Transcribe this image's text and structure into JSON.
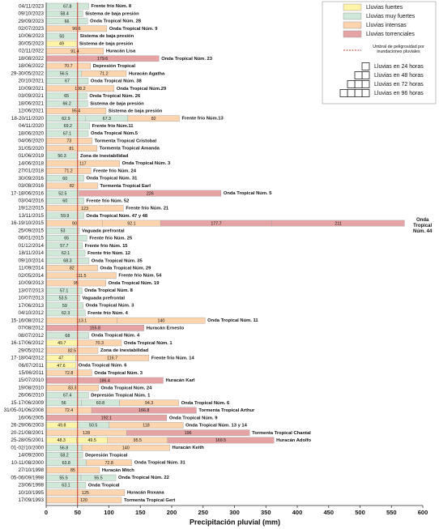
{
  "chart_data": {
    "type": "bar",
    "orientation": "horizontal",
    "xlabel": "Precipitación pluvial (mm)",
    "xlim": [
      0,
      600
    ],
    "xticks": [
      0,
      50,
      100,
      150,
      200,
      250,
      300,
      350,
      400,
      450,
      500,
      550,
      600
    ],
    "threshold": 50,
    "threshold_color": "#c0392b",
    "threshold_label": "Umbral de peligrosidad por inundaciones pluviales",
    "legend": [
      {
        "name": "Lluvias fuertes",
        "color": "#fff4a8"
      },
      {
        "name": "Lluvias muy fuertes",
        "color": "#cfe8d8"
      },
      {
        "name": "Lluvias intensas",
        "color": "#fcd5ae"
      },
      {
        "name": "Lluvias torrenciales",
        "color": "#e6a3a3"
      }
    ],
    "duration_legend": [
      "Lluvias en 24 horas",
      "Lluvias en 48 horas",
      "Lluvias en 72 horas",
      "Lluvias en 96 horas"
    ],
    "rows": [
      {
        "date": "04/11/2023",
        "values": [
          67.8
        ],
        "colors": [
          "#cfe8d8"
        ],
        "event": "Frente frío Núm. 8"
      },
      {
        "date": "09/10/2023",
        "values": [
          58.4
        ],
        "colors": [
          "#cfe8d8"
        ],
        "event": "Sistema de baja presión"
      },
      {
        "date": "29/09/2023",
        "values": [
          66
        ],
        "colors": [
          "#cfe8d8"
        ],
        "event": "Onda Tropical Núm. 28"
      },
      {
        "date": "02/07/2023",
        "values": [
          96.6
        ],
        "colors": [
          "#fcd5ae"
        ],
        "event": "Onda Tropical Núm. 9"
      },
      {
        "date": "10/06/2023",
        "values": [
          50
        ],
        "colors": [
          "#cfe8d8"
        ],
        "event": "Sistema de baja presión"
      },
      {
        "date": "30/05/2023",
        "values": [
          49
        ],
        "colors": [
          "#fff4a8"
        ],
        "event": "Sistema de baja presión"
      },
      {
        "date": "02/11/2022",
        "values": [
          91.4
        ],
        "colors": [
          "#fcd5ae"
        ],
        "event": "Huracán Lisa"
      },
      {
        "date": "18/08/2022",
        "values": [
          179.6
        ],
        "colors": [
          "#e6a3a3"
        ],
        "event": "Onda Tropical Núm. 23"
      },
      {
        "date": "18/06/2022",
        "values": [
          70.7
        ],
        "colors": [
          "#fcd5ae"
        ],
        "event": "Depresión Tropical"
      },
      {
        "date": "29-30/05/2022",
        "values": [
          56.5,
          71.2
        ],
        "colors": [
          "#cfe8d8",
          "#fcd5ae"
        ],
        "event": "Huracán Agatha"
      },
      {
        "date": "20/10/2021",
        "values": [
          67
        ],
        "colors": [
          "#cfe8d8"
        ],
        "event": "Onda Tropical Núm. 38"
      },
      {
        "date": "10/09/2021",
        "values": [
          108.2
        ],
        "colors": [
          "#fcd5ae"
        ],
        "event": "Onda Tropical Núm.29"
      },
      {
        "date": "03/09/2021",
        "values": [
          65
        ],
        "colors": [
          "#cfe8d8"
        ],
        "event": "Onda Tropical Núm. 26"
      },
      {
        "date": "18/06/2021",
        "values": [
          66.2
        ],
        "colors": [
          "#cfe8d8"
        ],
        "event": "Sistema de baja presión"
      },
      {
        "date": "12/06/2021",
        "values": [
          95.4
        ],
        "colors": [
          "#fcd5ae"
        ],
        "event": "Sistema de baja presión"
      },
      {
        "date": "18-20/11/2020",
        "values": [
          62.9,
          67.3,
          82
        ],
        "colors": [
          "#cfe8d8",
          "#cfe8d8",
          "#fcd5ae"
        ],
        "event": "Frente frío Núm.13"
      },
      {
        "date": "04/11/2020",
        "values": [
          69.2
        ],
        "colors": [
          "#cfe8d8"
        ],
        "event": "Frente frío Núm.11"
      },
      {
        "date": "18/06/2020",
        "values": [
          67.1
        ],
        "colors": [
          "#cfe8d8"
        ],
        "event": "Onda Tropical Núm.5"
      },
      {
        "date": "04/06/2020",
        "values": [
          73
        ],
        "colors": [
          "#fcd5ae"
        ],
        "event": "Tormenta Tropical Cristobal"
      },
      {
        "date": "31/05/2020",
        "values": [
          81
        ],
        "colors": [
          "#fcd5ae"
        ],
        "event": "Tormenta Tropical Amanda"
      },
      {
        "date": "01/06/2019",
        "values": [
          50.3
        ],
        "colors": [
          "#cfe8d8"
        ],
        "event": "Zona de inestabilidad"
      },
      {
        "date": "14/06/2018",
        "values": [
          117
        ],
        "colors": [
          "#fcd5ae"
        ],
        "event": "Onda Tropical Núm. 3"
      },
      {
        "date": "27/01/2018",
        "values": [
          71.2
        ],
        "colors": [
          "#fcd5ae"
        ],
        "event": "Frente frío Núm. 24"
      },
      {
        "date": "30/09/2016",
        "values": [
          60
        ],
        "colors": [
          "#cfe8d8"
        ],
        "event": "Onda Tropical Núm. 31"
      },
      {
        "date": "03/08/2016",
        "values": [
          82
        ],
        "colors": [
          "#fcd5ae"
        ],
        "event": "Tormenta Tropical Earl"
      },
      {
        "date": "17-18/06/2016",
        "values": [
          52.5,
          226
        ],
        "colors": [
          "#cfe8d8",
          "#e6a3a3"
        ],
        "event": "Onda Tropical Núm. 5"
      },
      {
        "date": "03/04/2016",
        "values": [
          60
        ],
        "colors": [
          "#cfe8d8"
        ],
        "event": "Frente frío Núm. 52"
      },
      {
        "date": "19/12/2015",
        "values": [
          123
        ],
        "colors": [
          "#fcd5ae"
        ],
        "event": "Frente frío Núm. 21"
      },
      {
        "date": "13/11/2015",
        "values": [
          59.9
        ],
        "colors": [
          "#cfe8d8"
        ],
        "event": "Onda Tropical Núm. 47 y 48"
      },
      {
        "date": "16-19/10/2015",
        "values": [
          90,
          92.1,
          177.7,
          211
        ],
        "colors": [
          "#fcd5ae",
          "#fcd5ae",
          "#e6a3a3",
          "#e6a3a3"
        ],
        "event": "Onda Tropical Núm. 44"
      },
      {
        "date": "25/09/2015",
        "values": [
          53
        ],
        "colors": [
          "#cfe8d8"
        ],
        "event": "Vaguada prefrontal"
      },
      {
        "date": "06/01/2015",
        "values": [
          65
        ],
        "colors": [
          "#cfe8d8"
        ],
        "event": "Frente frío Núm. 25"
      },
      {
        "date": "01/12/2014",
        "values": [
          57.7
        ],
        "colors": [
          "#cfe8d8"
        ],
        "event": "Frente frío Núm. 15"
      },
      {
        "date": "18/11/2014",
        "values": [
          62.1
        ],
        "colors": [
          "#cfe8d8"
        ],
        "event": "Frente frío Núm. 12"
      },
      {
        "date": "09/10/2014",
        "values": [
          68.3
        ],
        "colors": [
          "#cfe8d8"
        ],
        "event": "Onda Tropical Núm. 35"
      },
      {
        "date": "11/09/2014",
        "values": [
          82
        ],
        "colors": [
          "#fcd5ae"
        ],
        "event": "Onda Tropical Núm. 29"
      },
      {
        "date": "02/05/2014",
        "values": [
          111.5
        ],
        "colors": [
          "#fcd5ae"
        ],
        "event": "Frente frío Núm. 54"
      },
      {
        "date": "10/09/2013",
        "values": [
          95
        ],
        "colors": [
          "#fcd5ae"
        ],
        "event": "Onda Tropical Núm. 19"
      },
      {
        "date": "13/07/2013",
        "values": [
          57.1
        ],
        "colors": [
          "#cfe8d8"
        ],
        "event": "Onda Tropical Núm. 8"
      },
      {
        "date": "10/07/2013",
        "values": [
          53.5
        ],
        "colors": [
          "#cfe8d8"
        ],
        "event": "Vaguada prefrontal"
      },
      {
        "date": "17/06/2013",
        "values": [
          59
        ],
        "colors": [
          "#cfe8d8"
        ],
        "event": "Onda Tropical Núm. 3"
      },
      {
        "date": "04/10/2012",
        "values": [
          62.3
        ],
        "colors": [
          "#cfe8d8"
        ],
        "event": "Frente frío Núm. 4"
      },
      {
        "date": "15-16/08/2012",
        "values": [
          113.1,
          140
        ],
        "colors": [
          "#fcd5ae",
          "#fcd5ae"
        ],
        "event": "Onda Tropical Núm. 11"
      },
      {
        "date": "07/08/2012",
        "values": [
          155.8
        ],
        "colors": [
          "#e6a3a3"
        ],
        "event": "Huracán Ernesto"
      },
      {
        "date": "08/07/2012",
        "values": [
          68
        ],
        "colors": [
          "#cfe8d8"
        ],
        "event": "Onda Tropical Núm. 4"
      },
      {
        "date": "16-17/06/2012",
        "values": [
          49.7,
          70.3
        ],
        "colors": [
          "#fff4a8",
          "#fcd5ae"
        ],
        "event": "Onda Tropical Núm. 1"
      },
      {
        "date": "29/05/2012",
        "values": [
          82.5
        ],
        "colors": [
          "#fcd5ae"
        ],
        "event": "Zona de inestabilidad"
      },
      {
        "date": "17-18/04/2012",
        "values": [
          47,
          116.7
        ],
        "colors": [
          "#fff4a8",
          "#fcd5ae"
        ],
        "event": "Frente frío Núm. 14"
      },
      {
        "date": "06/07/2011",
        "values": [
          47.6
        ],
        "colors": [
          "#fff4a8"
        ],
        "event": "Onda Tropical Núm. 6"
      },
      {
        "date": "15/06/2011",
        "values": [
          72.8
        ],
        "colors": [
          "#fcd5ae"
        ],
        "event": "Onda Tropical Núm. 3"
      },
      {
        "date": "15/07/2010",
        "values": [
          186.4
        ],
        "colors": [
          "#e6a3a3"
        ],
        "event": "Huracán Karl"
      },
      {
        "date": "19/08/2010",
        "values": [
          83.3
        ],
        "colors": [
          "#fcd5ae"
        ],
        "event": "Onda Tropical Núm. 24"
      },
      {
        "date": "26/06/2010",
        "values": [
          67.4
        ],
        "colors": [
          "#cfe8d8"
        ],
        "event": "Depresión Tropical Núm. 1"
      },
      {
        "date": "15-17/06/2009",
        "values": [
          56,
          60.8,
          94.3
        ],
        "colors": [
          "#cfe8d8",
          "#cfe8d8",
          "#fcd5ae"
        ],
        "event": "Onda Tropical Núm. 6"
      },
      {
        "date": "31/05-01/06/2008",
        "values": [
          72.4,
          166.8
        ],
        "colors": [
          "#fcd5ae",
          "#e6a3a3"
        ],
        "event": "Tormenta Tropical Arthur"
      },
      {
        "date": "16/06/2005",
        "values": [
          192.1
        ],
        "colors": [
          "#e6a3a3"
        ],
        "event": "Onda Tropical Núm. 9"
      },
      {
        "date": "26-29/06/2003",
        "values": [
          49.8,
          50.5,
          118
        ],
        "colors": [
          "#fff4a8",
          "#cfe8d8",
          "#fcd5ae"
        ],
        "event": "Onda Tropical Núm. 13 y 14"
      },
      {
        "date": "20-21/08/2001",
        "values": [
          128,
          196
        ],
        "colors": [
          "#fcd5ae",
          "#e6a3a3"
        ],
        "event": "Tormenta Tropical Chantal"
      },
      {
        "date": "25-28/05/2001",
        "values": [
          48.3,
          49.5,
          95.5,
          169.5
        ],
        "colors": [
          "#fff4a8",
          "#fff4a8",
          "#fcd5ae",
          "#e6a3a3"
        ],
        "event": "Huracán Adolfo"
      },
      {
        "date": "01-02/10/2000",
        "values": [
          56.8,
          140
        ],
        "colors": [
          "#cfe8d8",
          "#fcd5ae"
        ],
        "event": "Huracán Keith"
      },
      {
        "date": "14/09/2000",
        "values": [
          58.2
        ],
        "colors": [
          "#cfe8d8"
        ],
        "event": "Depresión Tropical"
      },
      {
        "date": "10-11/08/2000",
        "values": [
          63.8,
          72.8
        ],
        "colors": [
          "#cfe8d8",
          "#fcd5ae"
        ],
        "event": "Onda Tropical Núm. 31"
      },
      {
        "date": "27/10/1998",
        "values": [
          85
        ],
        "colors": [
          "#fcd5ae"
        ],
        "event": "Huracán Mitch"
      },
      {
        "date": "05-06/09/1998",
        "values": [
          55.5,
          55.5
        ],
        "colors": [
          "#cfe8d8",
          "#cfe8d8"
        ],
        "event": "Onda Tropical Núm. 22"
      },
      {
        "date": "23/06/1998",
        "values": [
          63.1
        ],
        "colors": [
          "#cfe8d8"
        ],
        "event": "Onda Tropical"
      },
      {
        "date": "10/10/1995",
        "values": [
          125
        ],
        "colors": [
          "#fcd5ae"
        ],
        "event": "Huracán Roxana"
      },
      {
        "date": "17/09/1993",
        "values": [
          120
        ],
        "colors": [
          "#fcd5ae"
        ],
        "event": "Tormenta Tropical Gert"
      }
    ]
  }
}
